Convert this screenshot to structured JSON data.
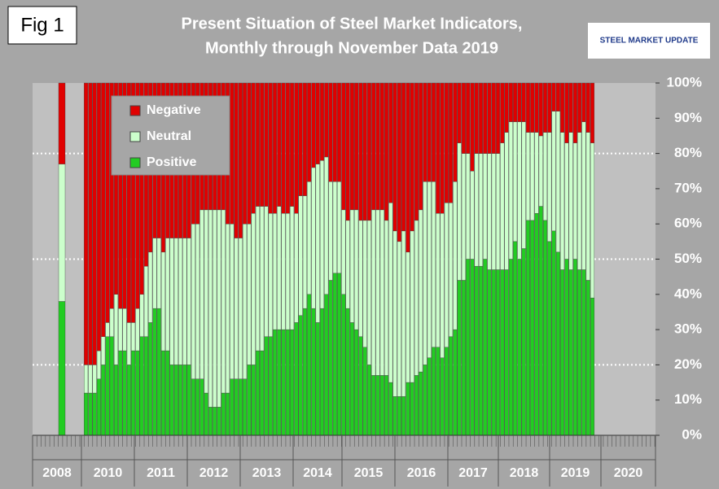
{
  "chart_data": {
    "type": "bar",
    "stacked": true,
    "figure_label": "Fig 1",
    "title": "Present Situation of Steel Market Indicators,",
    "subtitle": "Monthly through November Data 2019",
    "logo": "STEEL MARKET UPDATE",
    "categories": [
      null,
      null,
      null,
      null,
      null,
      null,
      null,
      null,
      null,
      null,
      null,
      null,
      null,
      null,
      null,
      null,
      null,
      null,
      null,
      null,
      null,
      null,
      null,
      null,
      null,
      null,
      null,
      null,
      null,
      null,
      null,
      null,
      null,
      null,
      null,
      null,
      null,
      null,
      null,
      null,
      null,
      null,
      null,
      null,
      null,
      null,
      null,
      null,
      null,
      null,
      null,
      null,
      null,
      null,
      null,
      null,
      null,
      null,
      null,
      null,
      null,
      null,
      null,
      null,
      null,
      null,
      null,
      null,
      null,
      null,
      null,
      null,
      null,
      null,
      null,
      null,
      null,
      null,
      null,
      null,
      null,
      null,
      null,
      null,
      null,
      null,
      null,
      null,
      null,
      null,
      null,
      null,
      null,
      null,
      null,
      null,
      null,
      null,
      null,
      null,
      null,
      null,
      null,
      null,
      null,
      null,
      null,
      null,
      null,
      null,
      null,
      null,
      null,
      null,
      null,
      null,
      null,
      null,
      null,
      null
    ],
    "year_labels": [
      "2008",
      "2010",
      "2011",
      "2012",
      "2013",
      "2014",
      "2015",
      "2016",
      "2017",
      "2018",
      "2019",
      "2020"
    ],
    "series": [
      {
        "name": "Negative",
        "color": "#e00000",
        "values": [
          23,
          80,
          80,
          80,
          76,
          72,
          68,
          64,
          60,
          64,
          64,
          68,
          68,
          64,
          60,
          52,
          48,
          44,
          44,
          48,
          44,
          44,
          44,
          44,
          44,
          44,
          40,
          40,
          36,
          36,
          36,
          36,
          36,
          36,
          40,
          40,
          44,
          44,
          40,
          40,
          37,
          35,
          35,
          35,
          37,
          37,
          35,
          37,
          37,
          35,
          37,
          32,
          32,
          28,
          24,
          23,
          22,
          21,
          28,
          28,
          28,
          36,
          39,
          36,
          36,
          39,
          39,
          39,
          36,
          36,
          36,
          39,
          34,
          42,
          45,
          42,
          48,
          42,
          39,
          36,
          28,
          28,
          28,
          37,
          37,
          34,
          34,
          28,
          17,
          20,
          20,
          25,
          20,
          20,
          20,
          20,
          20,
          20,
          17,
          14,
          11,
          11,
          11,
          11,
          14,
          14,
          14,
          15,
          14,
          14,
          8,
          8,
          14,
          17,
          14,
          17,
          14,
          11,
          14,
          17
        ]
      },
      {
        "name": "Neutral",
        "color": "#ccffcc",
        "values": [
          39,
          8,
          8,
          8,
          8,
          8,
          4,
          8,
          20,
          12,
          12,
          12,
          8,
          12,
          12,
          20,
          20,
          20,
          20,
          28,
          32,
          36,
          36,
          36,
          36,
          36,
          44,
          44,
          48,
          52,
          56,
          56,
          56,
          52,
          48,
          44,
          40,
          40,
          44,
          40,
          43,
          41,
          41,
          37,
          35,
          33,
          35,
          33,
          33,
          35,
          31,
          34,
          32,
          32,
          40,
          45,
          42,
          39,
          28,
          26,
          26,
          24,
          25,
          32,
          34,
          33,
          36,
          41,
          47,
          47,
          47,
          44,
          51,
          47,
          44,
          47,
          37,
          43,
          44,
          46,
          52,
          50,
          47,
          38,
          41,
          41,
          38,
          42,
          39,
          36,
          30,
          25,
          32,
          32,
          30,
          33,
          33,
          33,
          36,
          39,
          39,
          34,
          39,
          36,
          25,
          25,
          23,
          20,
          25,
          31,
          34,
          40,
          39,
          33,
          39,
          33,
          39,
          42,
          42,
          44
        ]
      },
      {
        "name": "Positive",
        "color": "#22cc22",
        "values": [
          38,
          12,
          12,
          12,
          16,
          20,
          28,
          28,
          20,
          24,
          24,
          20,
          24,
          24,
          28,
          28,
          32,
          36,
          36,
          24,
          24,
          20,
          20,
          20,
          20,
          20,
          16,
          16,
          16,
          12,
          8,
          8,
          8,
          12,
          12,
          16,
          16,
          16,
          16,
          20,
          20,
          24,
          24,
          28,
          28,
          30,
          30,
          30,
          30,
          30,
          32,
          34,
          36,
          40,
          36,
          32,
          36,
          40,
          44,
          46,
          46,
          40,
          36,
          32,
          30,
          28,
          25,
          20,
          17,
          17,
          17,
          17,
          15,
          11,
          11,
          11,
          15,
          15,
          17,
          18,
          20,
          22,
          25,
          25,
          22,
          25,
          28,
          30,
          44,
          44,
          50,
          50,
          48,
          48,
          50,
          47,
          47,
          47,
          47,
          47,
          50,
          55,
          50,
          53,
          61,
          61,
          63,
          65,
          61,
          55,
          58,
          52,
          47,
          50,
          47,
          50,
          47,
          47,
          44,
          39
        ]
      }
    ],
    "ylim": [
      0,
      100
    ],
    "yticks": [
      {
        "value": 0,
        "label": "0%"
      },
      {
        "value": 10,
        "label": "10%"
      },
      {
        "value": 20,
        "label": "20%"
      },
      {
        "value": 30,
        "label": "30%"
      },
      {
        "value": 40,
        "label": "40%"
      },
      {
        "value": 50,
        "label": "50%"
      },
      {
        "value": 60,
        "label": "60%"
      },
      {
        "value": 70,
        "label": "70%"
      },
      {
        "value": 80,
        "label": "80%"
      },
      {
        "value": 90,
        "label": "90%"
      },
      {
        "value": 100,
        "label": "100%"
      }
    ],
    "reference_lines": [
      20,
      50,
      80
    ],
    "legend": "upper left"
  }
}
